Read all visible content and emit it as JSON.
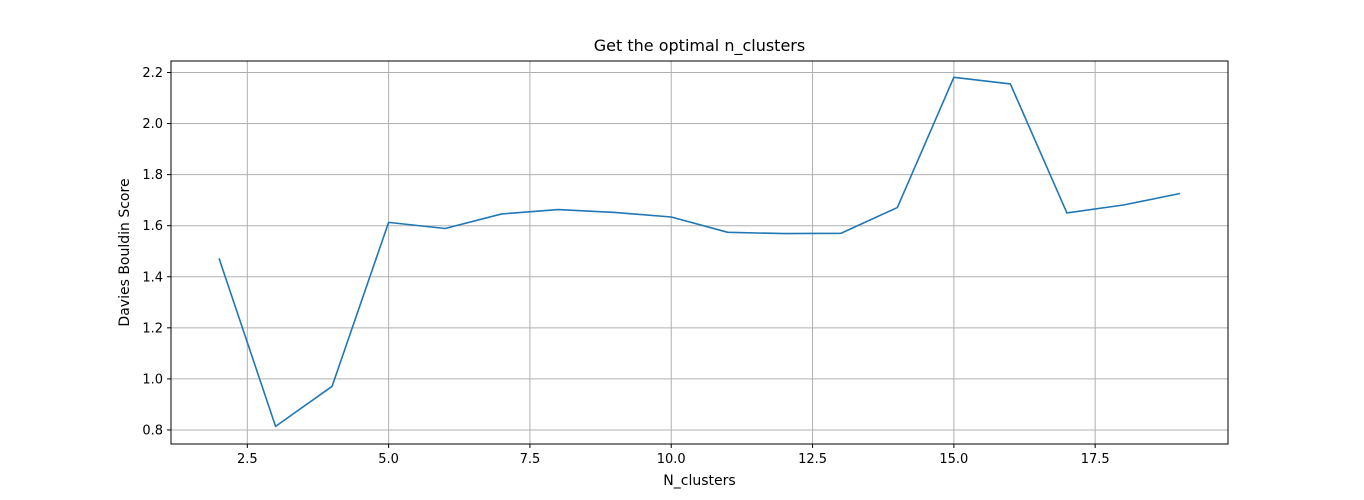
{
  "chart_data": {
    "type": "line",
    "title": "Get the optimal n_clusters",
    "xlabel": "N_clusters",
    "ylabel": "Davies Bouldin Score",
    "xlim": [
      1.15,
      19.85
    ],
    "ylim": [
      0.745,
      2.245
    ],
    "grid": true,
    "x_ticks": [
      2.5,
      5.0,
      7.5,
      10.0,
      12.5,
      15.0,
      17.5
    ],
    "x_tick_labels": [
      "2.5",
      "5.0",
      "7.5",
      "10.0",
      "12.5",
      "15.0",
      "17.5"
    ],
    "y_ticks": [
      0.8,
      1.0,
      1.2,
      1.4,
      1.6,
      1.8,
      2.0,
      2.2
    ],
    "y_tick_labels": [
      "0.8",
      "1.0",
      "1.2",
      "1.4",
      "1.6",
      "1.8",
      "2.0",
      "2.2"
    ],
    "series": [
      {
        "color": "#1f77b4",
        "x": [
          2,
          3,
          4,
          5,
          6,
          7,
          8,
          9,
          10,
          11,
          12,
          13,
          14,
          15,
          16,
          17,
          18,
          19
        ],
        "values": [
          1.472,
          0.814,
          0.971,
          1.613,
          1.589,
          1.646,
          1.663,
          1.652,
          1.634,
          1.574,
          1.569,
          1.57,
          1.671,
          2.181,
          2.155,
          1.65,
          1.681,
          1.726
        ]
      }
    ]
  }
}
